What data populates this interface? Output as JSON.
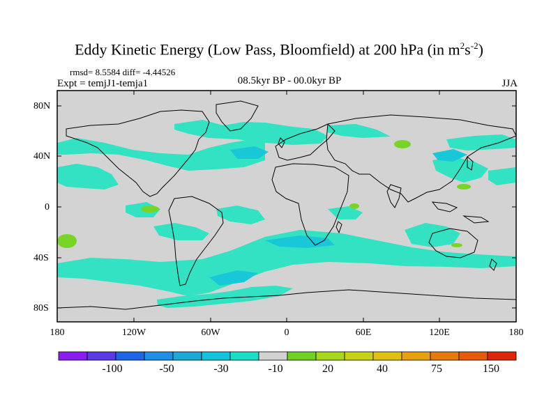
{
  "title": {
    "main": "Eddy Kinetic Energy (Low Pass, Bloomfield) at 200 hPa (in m",
    "sup1": "2",
    "mid": "s",
    "sup2": "-2",
    "end": ")"
  },
  "stats": "rmsd= 8.5584  diff= -4.44526",
  "expt": "Expt = temjJ1-temja1",
  "period": "08.5kyr BP - 00.0kyr BP",
  "season": "JJA",
  "lat_labels": [
    "80N",
    "40N",
    "0",
    "40S",
    "80S"
  ],
  "lon_labels": [
    "180",
    "120W",
    "60W",
    "0",
    "60E",
    "120E",
    "180"
  ],
  "colorbar": {
    "colors": [
      "#8a1ef2",
      "#5a3ae8",
      "#1e64e6",
      "#1e8ee8",
      "#1aaad8",
      "#12c4dc",
      "#18e0c8",
      "#d2d2d2",
      "#6ed21e",
      "#a8d81a",
      "#c8d214",
      "#e0c010",
      "#e8a00c",
      "#e87a0a",
      "#e85a0a",
      "#e0260a"
    ],
    "labels": [
      "-100",
      "-50",
      "-30",
      "-10",
      "20",
      "40",
      "75",
      "150"
    ]
  },
  "colors": {
    "ocean_land": "#d3d3d3",
    "neg_light": "#33e2c3",
    "neg_mid": "#18c8d8",
    "pos": "#7ad428"
  }
}
